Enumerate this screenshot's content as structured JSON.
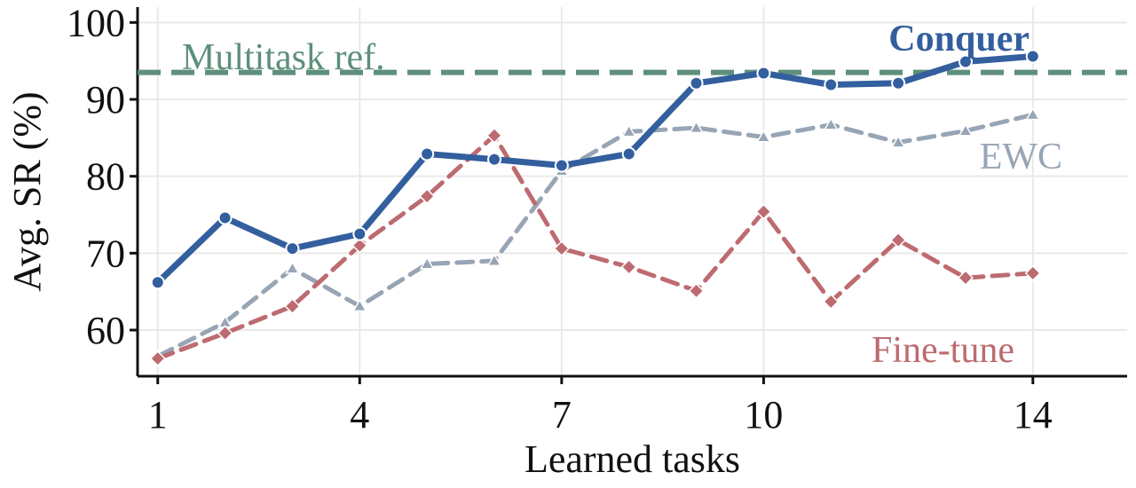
{
  "chart_data": {
    "type": "line",
    "xlabel": "Learned tasks",
    "ylabel": "Avg. SR (%)",
    "xlim": [
      0.7,
      15.4
    ],
    "ylim": [
      54,
      102
    ],
    "x_ticks": [
      1,
      4,
      7,
      10,
      14
    ],
    "y_ticks": [
      60,
      70,
      80,
      90,
      100
    ],
    "grid": true,
    "x": [
      1,
      2,
      3,
      4,
      5,
      6,
      7,
      8,
      9,
      10,
      11,
      12,
      13,
      14
    ],
    "reference": {
      "name": "Multitask ref.",
      "value": 93.5,
      "color": "#5e8f7b",
      "style": "dashed"
    },
    "series": [
      {
        "name": "Conquer",
        "color": "#335f9e",
        "style": "solid",
        "marker": "circle",
        "values": [
          66.2,
          74.6,
          70.6,
          72.5,
          82.9,
          82.2,
          81.4,
          82.9,
          92.1,
          93.4,
          91.9,
          92.1,
          94.9,
          95.6
        ]
      },
      {
        "name": "EWC",
        "color": "#97a5b5",
        "style": "dashed",
        "marker": "triangle",
        "values": [
          56.6,
          61.0,
          68.0,
          63.1,
          68.6,
          69.0,
          80.7,
          85.8,
          86.3,
          85.1,
          86.7,
          84.4,
          85.9,
          88.0
        ]
      },
      {
        "name": "Fine-tune",
        "color": "#bd6b70",
        "style": "dashed",
        "marker": "diamond",
        "values": [
          56.3,
          59.6,
          63.1,
          71.0,
          77.4,
          85.3,
          70.6,
          68.2,
          65.1,
          75.4,
          63.7,
          71.7,
          66.8,
          67.4
        ]
      }
    ]
  }
}
